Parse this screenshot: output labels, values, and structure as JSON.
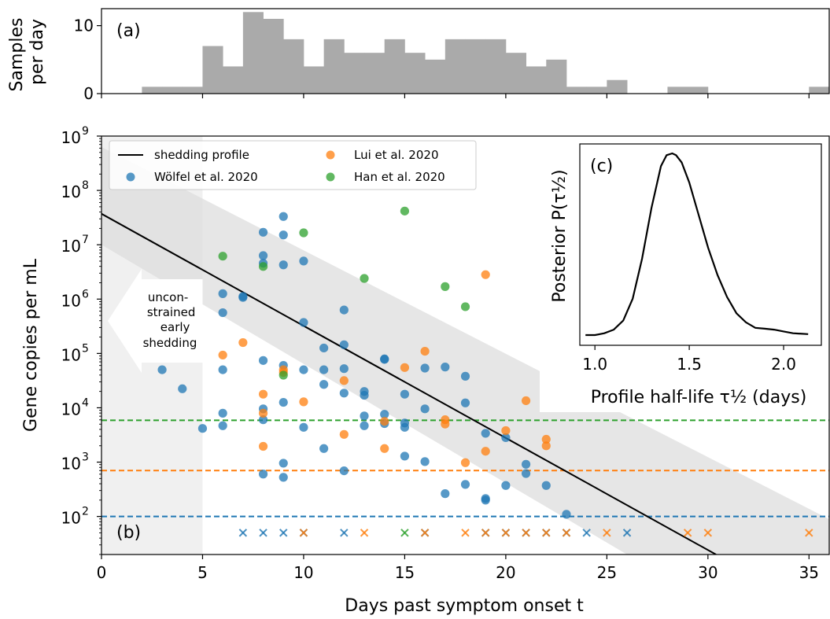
{
  "chart_data": [
    {
      "panel": "a",
      "type": "bar",
      "panel_label": "(a)",
      "ylabel_lines": [
        "Samples",
        "per day"
      ],
      "ylim": [
        0,
        12.5
      ],
      "xlim": [
        0,
        36
      ],
      "yticks": [
        0,
        10
      ],
      "bar_color": "#aaaaaa",
      "days": [
        2.5,
        3.5,
        4.5,
        5.5,
        6.5,
        7.5,
        8.5,
        9.5,
        10.5,
        11.5,
        12.5,
        13.5,
        14.5,
        15.5,
        16.5,
        17.5,
        18.5,
        19.5,
        20.5,
        21.5,
        22.5,
        23.5,
        24.5,
        25.5,
        26.5,
        27.5,
        28.5,
        29.5,
        30.5,
        31.5,
        32.5,
        33.5,
        34.5,
        35.5
      ],
      "values": [
        1,
        1,
        1,
        7,
        4,
        12,
        11,
        8,
        4,
        8,
        6,
        6,
        8,
        6,
        5,
        8,
        8,
        8,
        6,
        4,
        5,
        1,
        1,
        2,
        0,
        0,
        1,
        1,
        0,
        0,
        0,
        0,
        0,
        1
      ]
    },
    {
      "panel": "b",
      "type": "scatter",
      "panel_label": "(b)",
      "xlabel": "Days past symptom onset t",
      "ylabel": "Gene copies per mL",
      "xlim": [
        0,
        36
      ],
      "ylim_log10": [
        1.3,
        9
      ],
      "xticks": [
        0,
        5,
        10,
        15,
        20,
        25,
        30,
        35
      ],
      "yticks": [
        {
          "base": "10",
          "exp": "2",
          "v": 2
        },
        {
          "base": "10",
          "exp": "3",
          "v": 3
        },
        {
          "base": "10",
          "exp": "4",
          "v": 4
        },
        {
          "base": "10",
          "exp": "5",
          "v": 5
        },
        {
          "base": "10",
          "exp": "6",
          "v": 6
        },
        {
          "base": "10",
          "exp": "7",
          "v": 7
        },
        {
          "base": "10",
          "exp": "8",
          "v": 8
        },
        {
          "base": "10",
          "exp": "9",
          "v": 9
        }
      ],
      "profile_line": {
        "name": "shedding profile",
        "x": [
          0,
          30.4
        ],
        "log10_y": [
          7.57,
          1.3
        ],
        "color": "#000000"
      },
      "band_upper_log10": [
        [
          0,
          8.8
        ],
        [
          36,
          1.95
        ]
      ],
      "band_lower_log10": [
        [
          0,
          7.0
        ],
        [
          26,
          1.3
        ]
      ],
      "unconstrained_until_day": 5,
      "unconstrained_note_lines": [
        "uncon-",
        "strained",
        "early",
        "shedding"
      ],
      "thresholds": [
        {
          "series": "Wölfel et al. 2020",
          "log10_y": 2.0,
          "color": "#1f77b4"
        },
        {
          "series": "Lui et al. 2020",
          "log10_y": 2.845,
          "color": "#ff7f0e"
        },
        {
          "series": "Han et al. 2020",
          "log10_y": 3.77,
          "color": "#2ca02c"
        }
      ],
      "series": [
        {
          "name": "Wölfel et al. 2020",
          "color": "#1f77b4",
          "points": [
            [
              3,
              4.7
            ],
            [
              4,
              4.35
            ],
            [
              5,
              3.62
            ],
            [
              6,
              6.1
            ],
            [
              6,
              5.75
            ],
            [
              6,
              4.7
            ],
            [
              6,
              3.9
            ],
            [
              6,
              3.67
            ],
            [
              7,
              6.03
            ],
            [
              7,
              6.05
            ],
            [
              8,
              7.23
            ],
            [
              8,
              6.8
            ],
            [
              8,
              6.66
            ],
            [
              8,
              4.87
            ],
            [
              8,
              3.98
            ],
            [
              8,
              3.78
            ],
            [
              8,
              2.78
            ],
            [
              9,
              7.52
            ],
            [
              9,
              7.18
            ],
            [
              9,
              6.63
            ],
            [
              9,
              4.78
            ],
            [
              9,
              4.1
            ],
            [
              9,
              2.98
            ],
            [
              9,
              2.72
            ],
            [
              10,
              6.7
            ],
            [
              10,
              5.57
            ],
            [
              10,
              4.7
            ],
            [
              10,
              3.64
            ],
            [
              11,
              5.1
            ],
            [
              11,
              4.7
            ],
            [
              11,
              4.43
            ],
            [
              11,
              3.25
            ],
            [
              12,
              5.8
            ],
            [
              12,
              5.16
            ],
            [
              12,
              4.72
            ],
            [
              12,
              4.27
            ],
            [
              12,
              2.84
            ],
            [
              13,
              4.3
            ],
            [
              13,
              4.23
            ],
            [
              13,
              3.85
            ],
            [
              13,
              3.67
            ],
            [
              14,
              4.9
            ],
            [
              14,
              4.89
            ],
            [
              14,
              3.88
            ],
            [
              14,
              3.71
            ],
            [
              15,
              4.25
            ],
            [
              15,
              3.72
            ],
            [
              15,
              3.64
            ],
            [
              15,
              3.11
            ],
            [
              16,
              4.73
            ],
            [
              16,
              3.98
            ],
            [
              16,
              3.01
            ],
            [
              17,
              4.75
            ],
            [
              17,
              2.42
            ],
            [
              18,
              4.58
            ],
            [
              18,
              4.09
            ],
            [
              18,
              2.59
            ],
            [
              19,
              3.53
            ],
            [
              19,
              2.33
            ],
            [
              19,
              2.3
            ],
            [
              20,
              3.45
            ],
            [
              20,
              2.57
            ],
            [
              21,
              2.96
            ],
            [
              21,
              2.79
            ],
            [
              22,
              2.57
            ],
            [
              23,
              2.04
            ]
          ],
          "censored_days": [
            7,
            8,
            9,
            10,
            12,
            16,
            19,
            20,
            21,
            22,
            23,
            24,
            26
          ]
        },
        {
          "name": "Lui et al. 2020",
          "color": "#ff7f0e",
          "points": [
            [
              6,
              4.97
            ],
            [
              7,
              5.2
            ],
            [
              8,
              4.25
            ],
            [
              8,
              3.9
            ],
            [
              8,
              3.29
            ],
            [
              9,
              4.7
            ],
            [
              9,
              4.65
            ],
            [
              10,
              4.11
            ],
            [
              12,
              4.5
            ],
            [
              12,
              3.51
            ],
            [
              14,
              3.75
            ],
            [
              14,
              3.25
            ],
            [
              15,
              4.74
            ],
            [
              16,
              5.04
            ],
            [
              17,
              3.78
            ],
            [
              17,
              3.7
            ],
            [
              18,
              2.99
            ],
            [
              19,
              6.45
            ],
            [
              19,
              3.2
            ],
            [
              20,
              3.58
            ],
            [
              21,
              4.13
            ],
            [
              22,
              3.42
            ],
            [
              22,
              3.3
            ]
          ],
          "censored_days": [
            10,
            13,
            16,
            18,
            19,
            20,
            21,
            22,
            23,
            25,
            29,
            30,
            35
          ]
        },
        {
          "name": "Han et al. 2020",
          "color": "#2ca02c",
          "points": [
            [
              6,
              6.79
            ],
            [
              8,
              6.6
            ],
            [
              9,
              4.6
            ],
            [
              10,
              7.22
            ],
            [
              13,
              6.38
            ],
            [
              15,
              7.62
            ],
            [
              17,
              6.23
            ],
            [
              18,
              5.86
            ]
          ],
          "censored_days": [
            15
          ]
        }
      ]
    },
    {
      "panel": "c",
      "type": "line",
      "panel_label": "(c)",
      "xlabel": "Profile half-life τ½ (days)",
      "ylabel": "Posterior P(τ½)",
      "xlim": [
        0.92,
        2.2
      ],
      "xticks": [
        {
          "v": 1.0,
          "label": "1.0"
        },
        {
          "v": 1.5,
          "label": "1.5"
        },
        {
          "v": 2.0,
          "label": "2.0"
        }
      ],
      "curve": {
        "x": [
          0.95,
          1.0,
          1.05,
          1.1,
          1.15,
          1.2,
          1.25,
          1.3,
          1.35,
          1.38,
          1.41,
          1.43,
          1.46,
          1.5,
          1.55,
          1.6,
          1.65,
          1.7,
          1.75,
          1.8,
          1.85,
          1.9,
          1.95,
          2.0,
          2.05,
          2.13
        ],
        "y": [
          0.0,
          0.0,
          0.01,
          0.03,
          0.08,
          0.2,
          0.42,
          0.7,
          0.93,
          0.99,
          1.0,
          0.99,
          0.95,
          0.84,
          0.66,
          0.48,
          0.33,
          0.21,
          0.12,
          0.07,
          0.04,
          0.035,
          0.03,
          0.02,
          0.01,
          0.005
        ]
      }
    }
  ]
}
